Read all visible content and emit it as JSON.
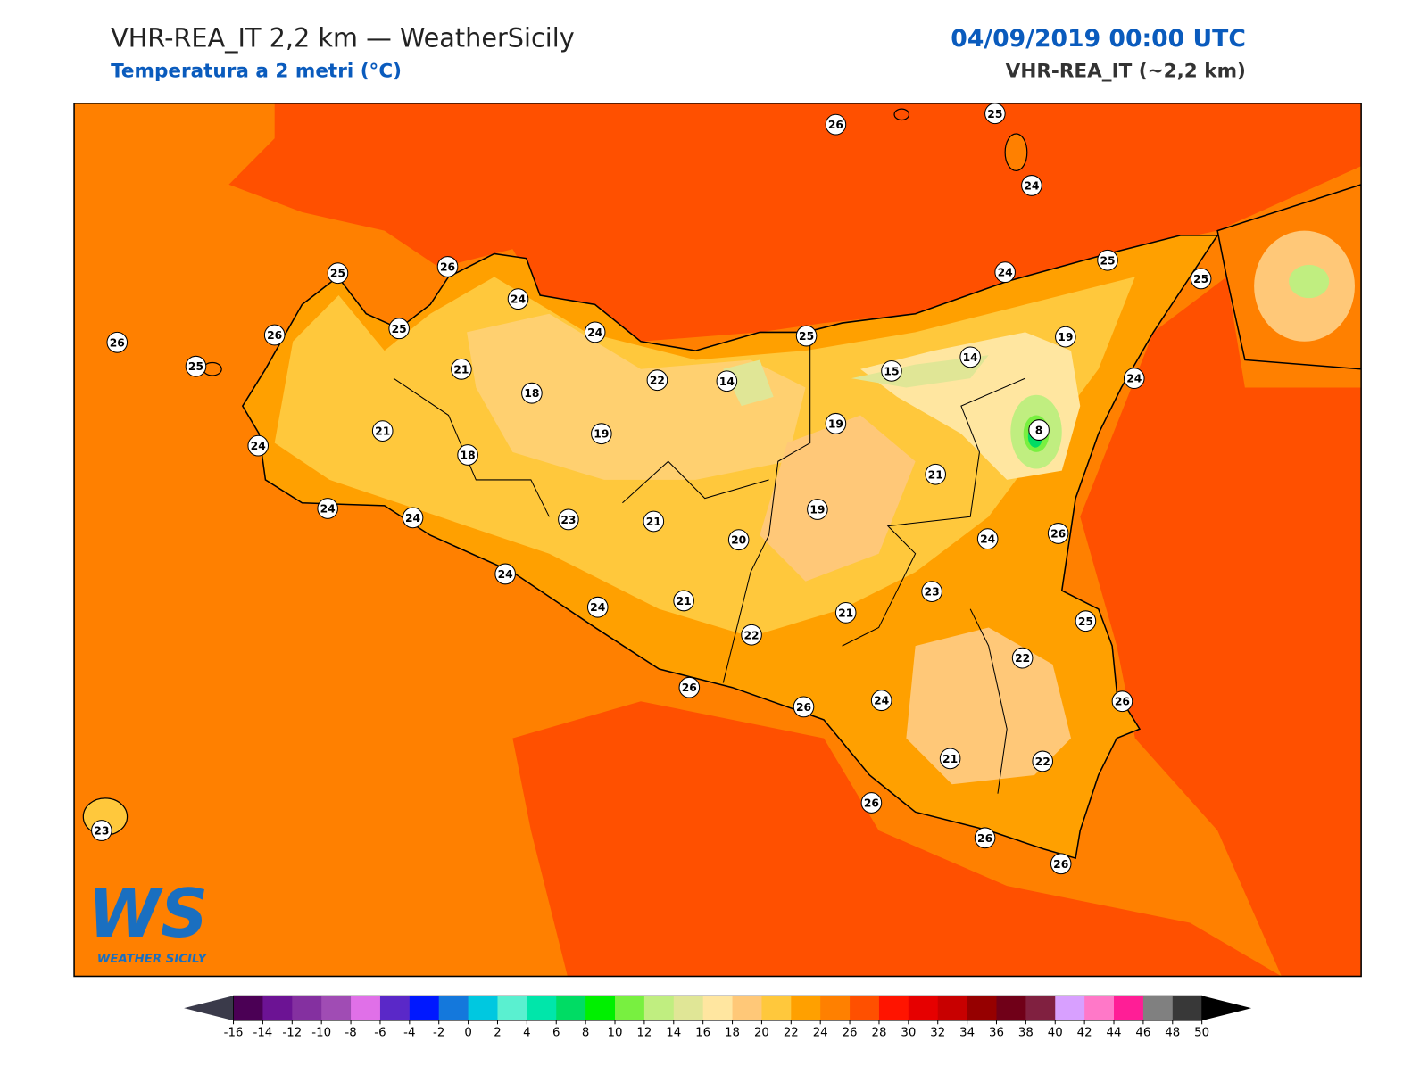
{
  "header": {
    "title": "VHR-REA_IT 2,2 km — WeatherSicily",
    "subtitle": "Temperatura a 2 metri (°C)",
    "date": "04/09/2019 00:00 UTC",
    "model": "VHR-REA_IT (~2,2 km)"
  },
  "map": {
    "stations": [
      26,
      25,
      24,
      25,
      26,
      24,
      24,
      26,
      26,
      25,
      25,
      21,
      18,
      22,
      14,
      25,
      15,
      14,
      19,
      24,
      25,
      25,
      24,
      8,
      19,
      19,
      21,
      24,
      18,
      21,
      24,
      24,
      23,
      21,
      20,
      19,
      24,
      26,
      24,
      24,
      21,
      22,
      21,
      23,
      25,
      22,
      26,
      26,
      24,
      26,
      21,
      22,
      26,
      26,
      26,
      23
    ]
  },
  "logo": {
    "mark": "WS",
    "text": "WEATHER SICILY"
  },
  "colorbar": {
    "ticks": [
      -16,
      -14,
      -12,
      -10,
      -8,
      -6,
      -4,
      -2,
      0,
      2,
      4,
      6,
      8,
      10,
      12,
      14,
      16,
      18,
      20,
      22,
      24,
      26,
      28,
      30,
      32,
      34,
      36,
      38,
      40,
      42,
      44,
      46,
      48,
      50
    ],
    "colors": [
      "#4b0055",
      "#6c1394",
      "#8430a0",
      "#a04cb4",
      "#e070e8",
      "#5a28c8",
      "#0018ff",
      "#1478dc",
      "#00c8e0",
      "#5af0d0",
      "#00e6aa",
      "#00dc64",
      "#00f000",
      "#78f040",
      "#c0ee80",
      "#e0e696",
      "#ffe6a0",
      "#ffc878",
      "#ffc83c",
      "#ffa000",
      "#ff8000",
      "#ff5000",
      "#ff1400",
      "#e60000",
      "#c80000",
      "#960000",
      "#700018",
      "#802040",
      "#d8a0ff",
      "#ff78c8",
      "#ff1e96",
      "#808080",
      "#383838"
    ],
    "under_color": "#3a3a4a",
    "over_color": "#000000"
  }
}
